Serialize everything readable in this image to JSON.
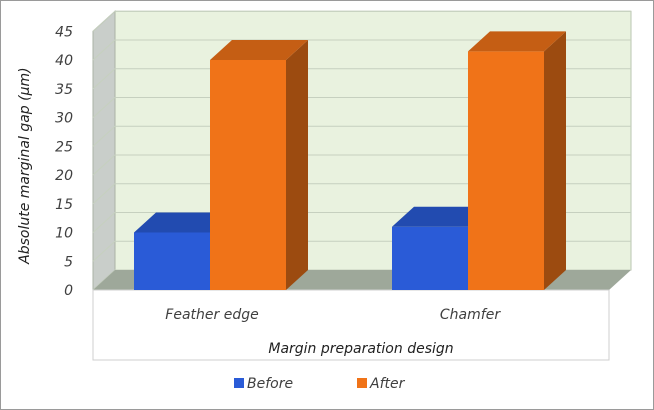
{
  "chart_data": {
    "type": "bar",
    "style": "3d-clustered-column",
    "categories": [
      "Feather edge",
      "Chamfer"
    ],
    "series": [
      {
        "name": "Before",
        "values": [
          10,
          11
        ],
        "color": "#2a5bd7"
      },
      {
        "name": "After",
        "values": [
          40,
          41.5
        ],
        "color": "#f07318"
      }
    ],
    "ylabel": "Absolute marginal gap (µm)",
    "xlabel": "Margin preparation design",
    "ylim": [
      0,
      45
    ],
    "yticks": [
      0,
      5,
      10,
      15,
      20,
      25,
      30,
      35,
      40,
      45
    ],
    "grid": true,
    "legend_position": "bottom",
    "colors": {
      "wall": "#e9f2df",
      "floor": "#9ea89a",
      "grid": "#c6d0bf"
    }
  }
}
